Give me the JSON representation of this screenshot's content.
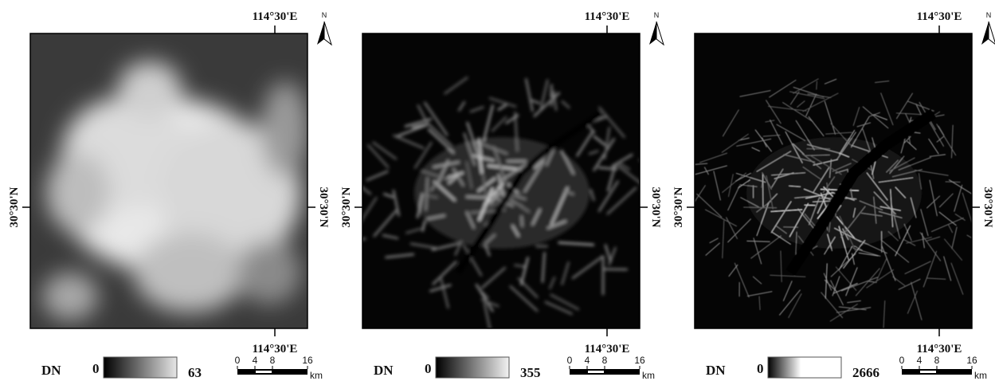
{
  "panels": [
    {
      "top_label": "114°30'E",
      "bottom_label": "114°30'E",
      "left_label": "30°30'N",
      "right_label": "30°30'N",
      "north": "N",
      "legend": {
        "title": "DN",
        "min": 0,
        "max": 63
      },
      "scale": {
        "ticks": [
          0,
          4,
          8,
          16
        ],
        "unit": "km"
      }
    },
    {
      "top_label": "114°30'E",
      "bottom_label": "114°30'E",
      "left_label": "30°30'N",
      "right_label": "30°30'N",
      "north": "N",
      "legend": {
        "title": "DN",
        "min": 0,
        "max": 355
      },
      "scale": {
        "ticks": [
          0,
          4,
          8,
          16
        ],
        "unit": "km"
      }
    },
    {
      "top_label": "114°30'E",
      "bottom_label": "114°30'E",
      "left_label": "30°30'N",
      "right_label": "30°30'N",
      "north": "N",
      "legend": {
        "title": "DN",
        "min": 0,
        "max": 2666
      },
      "scale": {
        "ticks": [
          0,
          4,
          8,
          16
        ],
        "unit": "km"
      }
    }
  ]
}
